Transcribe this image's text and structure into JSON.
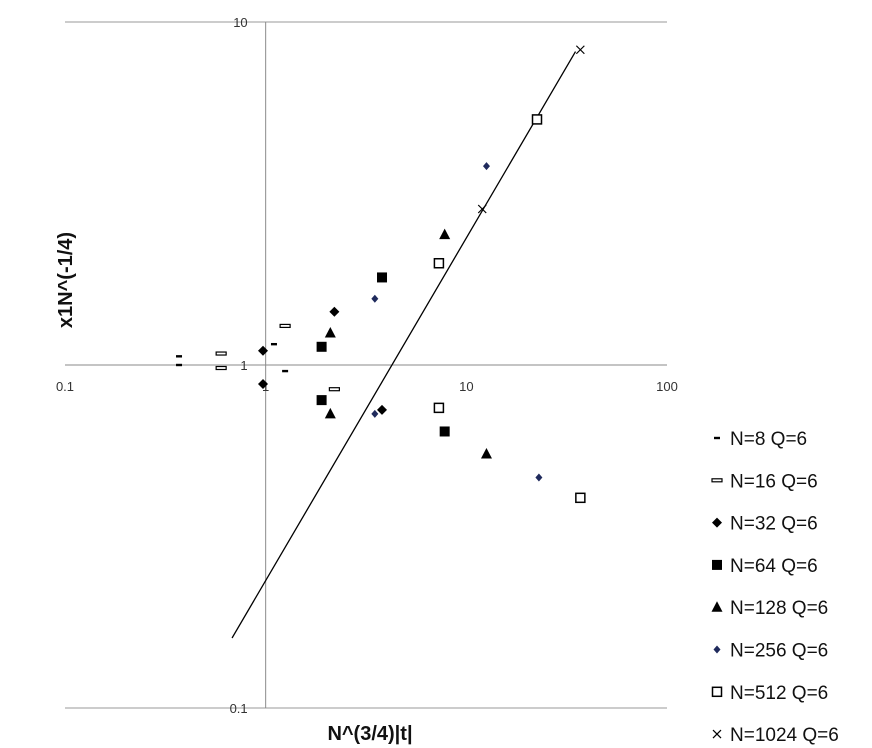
{
  "chart_data": {
    "type": "scatter",
    "title": "",
    "xlabel": "N^(3/4)|t|",
    "ylabel": "x1N^(-1/4)",
    "xscale": "log",
    "yscale": "log",
    "xlim": [
      0.1,
      100
    ],
    "ylim": [
      0.1,
      10
    ],
    "x_ticks": [
      "0.1",
      "1",
      "10",
      "100"
    ],
    "y_ticks": [
      "0.1",
      "1",
      "10"
    ],
    "grid": false,
    "legend_position": "right",
    "series": [
      {
        "name": "N=8 Q=6",
        "marker": "dash",
        "color": "#000000",
        "points": [
          [
            0.37,
            1.06
          ],
          [
            0.37,
            1.0
          ],
          [
            1.1,
            1.15
          ],
          [
            1.25,
            0.96
          ]
        ]
      },
      {
        "name": "N=16 Q=6",
        "marker": "open-dash",
        "color": "#000000",
        "points": [
          [
            0.6,
            1.08
          ],
          [
            0.6,
            0.98
          ],
          [
            1.25,
            1.3
          ],
          [
            2.2,
            0.85
          ]
        ]
      },
      {
        "name": "N=32 Q=6",
        "marker": "diamond",
        "color": "#000000",
        "points": [
          [
            0.97,
            1.1
          ],
          [
            0.97,
            0.88
          ],
          [
            2.2,
            1.43
          ],
          [
            3.8,
            0.74
          ]
        ]
      },
      {
        "name": "N=64 Q=6",
        "marker": "square",
        "color": "#000000",
        "points": [
          [
            1.9,
            1.13
          ],
          [
            1.9,
            0.79
          ],
          [
            3.8,
            1.8
          ],
          [
            7.8,
            0.64
          ]
        ]
      },
      {
        "name": "N=128 Q=6",
        "marker": "triangle",
        "color": "#000000",
        "points": [
          [
            2.1,
            1.24
          ],
          [
            2.1,
            0.72
          ],
          [
            7.8,
            2.4
          ],
          [
            12.6,
            0.55
          ]
        ]
      },
      {
        "name": "N=256 Q=6",
        "marker": "small-diamond",
        "color": "#1f2a5c",
        "points": [
          [
            3.5,
            1.56
          ],
          [
            3.5,
            0.72
          ],
          [
            12.6,
            3.8
          ],
          [
            23,
            0.47
          ]
        ]
      },
      {
        "name": "N=512 Q=6",
        "marker": "open-square",
        "color": "#000000",
        "points": [
          [
            7.3,
            1.98
          ],
          [
            7.3,
            0.75
          ],
          [
            22.5,
            5.2
          ],
          [
            37,
            0.41
          ]
        ]
      },
      {
        "name": "N=1024 Q=6",
        "marker": "x",
        "color": "#000000",
        "points": [
          [
            12,
            2.85
          ],
          [
            37,
            8.3
          ]
        ]
      }
    ],
    "fit_line": {
      "color": "#000000",
      "points": [
        [
          0.68,
          0.16
        ],
        [
          35,
          8.2
        ]
      ]
    }
  }
}
